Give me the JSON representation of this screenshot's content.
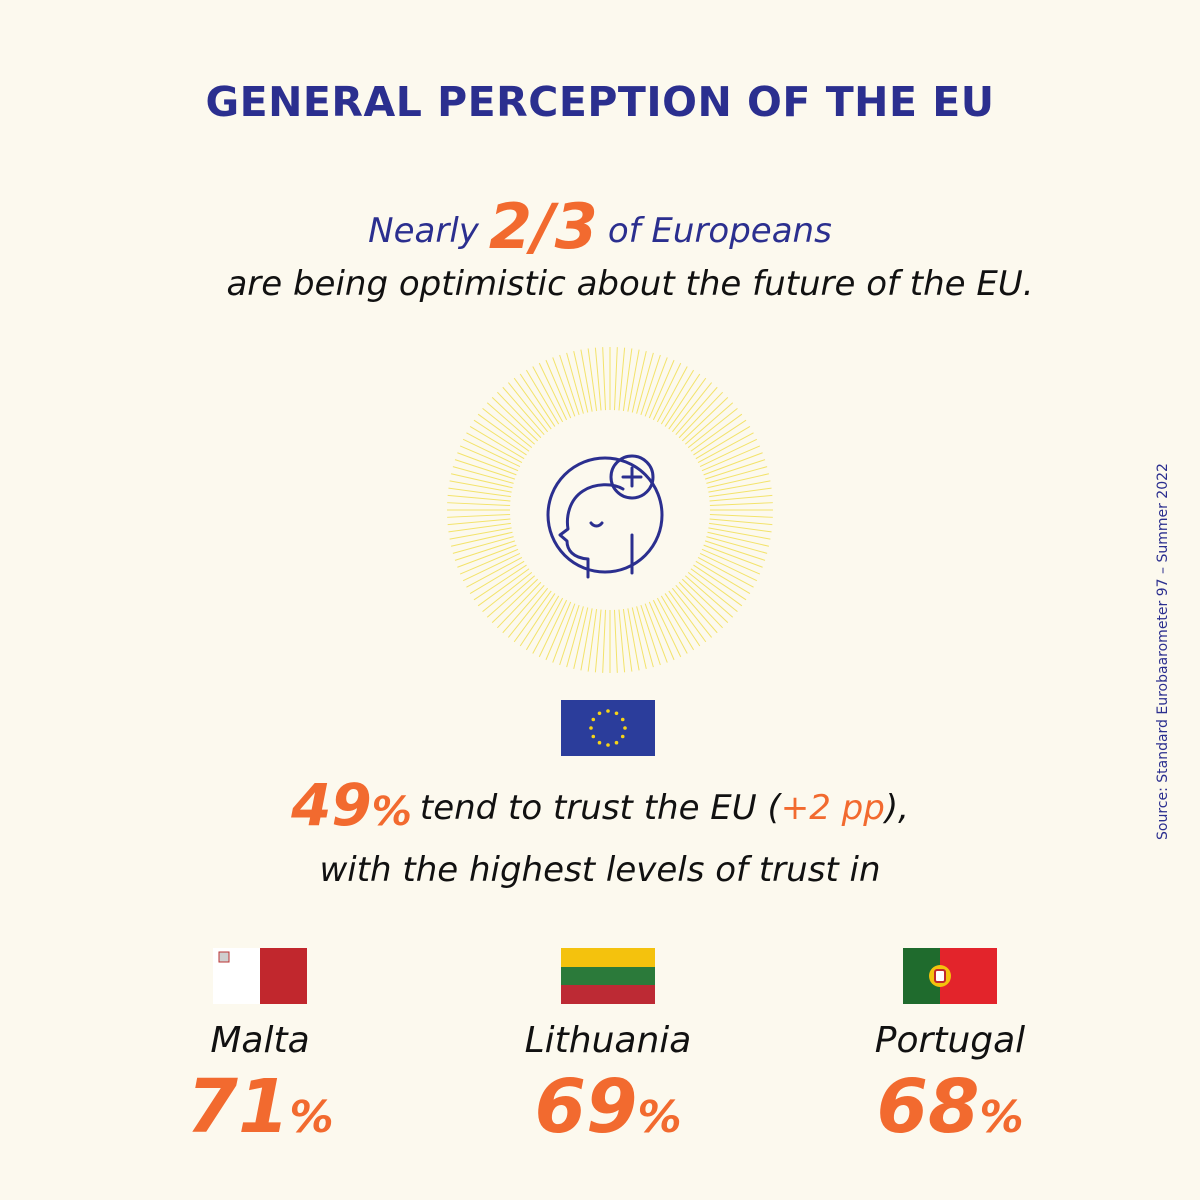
{
  "title": "GENERAL PERCEPTION OF THE EU",
  "headline": {
    "prefix": "Nearly",
    "fraction": "2/3",
    "suffix": "of Europeans",
    "line2": "are being optimistic about the future of the EU."
  },
  "icon": "optimistic-head-plus-icon",
  "trust": {
    "value": "49",
    "percent_symbol": "%",
    "text": "tend to trust the EU (",
    "delta": "+2 pp",
    "close": "),",
    "line2": "with the highest levels of trust in"
  },
  "countries": [
    {
      "name": "Malta",
      "value": "71",
      "symbol": "%"
    },
    {
      "name": "Lithuania",
      "value": "69",
      "symbol": "%"
    },
    {
      "name": "Portugal",
      "value": "68",
      "symbol": "%"
    }
  ],
  "source": "Source:  Standard Eurobaarometer 97 – Summer 2022",
  "colors": {
    "background": "#fcf9ee",
    "navy": "#2b2f8f",
    "orange": "#f26a2f",
    "sun_rays": "#f3e36b"
  }
}
